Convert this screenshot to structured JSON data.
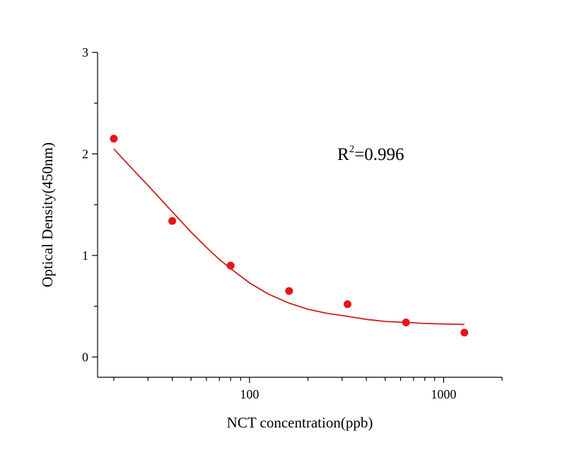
{
  "chart_data": {
    "type": "scatter",
    "title": "",
    "xlabel": "NCT concentration(ppb)",
    "ylabel": "Optical Density(450nm)",
    "x_scale": "log",
    "xlim": [
      16.5,
      2000
    ],
    "ylim": [
      -0.2,
      3.0
    ],
    "x_ticks": [
      100,
      1000
    ],
    "x_tick_labels": [
      "100",
      "1000"
    ],
    "y_ticks": [
      0,
      1,
      2,
      3
    ],
    "y_tick_labels": [
      "0",
      "1",
      "2",
      "3"
    ],
    "grid": false,
    "legend": "none",
    "annotation": {
      "base": "R",
      "sup": "2",
      "rest": "=0.996"
    },
    "series": [
      {
        "type": "scatter",
        "color": "#e8151b",
        "x": [
          20,
          40,
          80,
          160,
          320,
          640,
          1280
        ],
        "y": [
          2.15,
          1.34,
          0.9,
          0.65,
          0.52,
          0.34,
          0.24
        ]
      },
      {
        "type": "line",
        "color": "#cc1f1f",
        "x": [
          20,
          25,
          30,
          35,
          40,
          50,
          60,
          70,
          80,
          100,
          125,
          160,
          200,
          250,
          320,
          400,
          500,
          640,
          800,
          1000,
          1280
        ],
        "y": [
          2.05,
          1.85,
          1.69,
          1.55,
          1.43,
          1.23,
          1.08,
          0.96,
          0.87,
          0.73,
          0.62,
          0.53,
          0.47,
          0.43,
          0.4,
          0.37,
          0.35,
          0.34,
          0.33,
          0.325,
          0.32
        ]
      }
    ]
  }
}
